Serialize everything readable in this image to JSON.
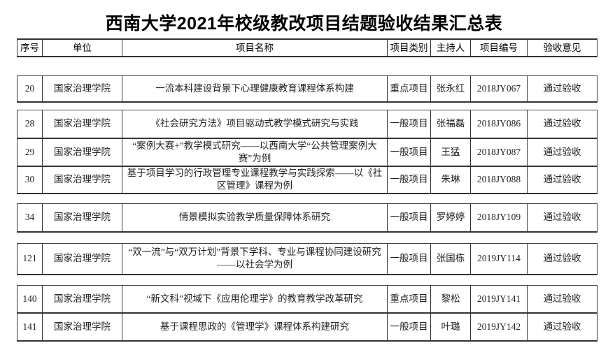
{
  "title": "西南大学2021年校级教改项目结题验收结果汇总表",
  "columns": [
    "序号",
    "单位",
    "项目名称",
    "项目类别",
    "主持人",
    "项目编号",
    "验收意见"
  ],
  "groups": [
    [
      {
        "no": "20",
        "unit": "国家治理学院",
        "name": "一流本科建设背景下心理健康教育课程体系构建",
        "category": "重点项目",
        "leader": "张永红",
        "code": "2018JY067",
        "result": "通过验收"
      }
    ],
    [
      {
        "no": "28",
        "unit": "国家治理学院",
        "name": "《社会研究方法》项目驱动式教学模式研究与实践",
        "category": "一般项目",
        "leader": "张福磊",
        "code": "2018JY086",
        "result": "通过验收"
      },
      {
        "no": "29",
        "unit": "国家治理学院",
        "name": "“案例大赛+”教学模式研究——以西南大学“公共管理案例大赛”为例",
        "category": "一般项目",
        "leader": "王猛",
        "code": "2018JY087",
        "result": "通过验收"
      },
      {
        "no": "30",
        "unit": "国家治理学院",
        "name": "基于项目学习的行政管理专业课程教学与实践探索——以《社区管理》课程为例",
        "category": "一般项目",
        "leader": "朱琳",
        "code": "2018JY088",
        "result": "通过验收"
      }
    ],
    [
      {
        "no": "34",
        "unit": "国家治理学院",
        "name": "情景模拟实验教学质量保障体系研究",
        "category": "一般项目",
        "leader": "罗婷婷",
        "code": "2018JY109",
        "result": "通过验收"
      }
    ],
    [
      {
        "no": "121",
        "unit": "国家治理学院",
        "name": "“双一流”与“双万计划”背景下学科、专业与课程协同建设研究——以社会学为例",
        "category": "一般项目",
        "leader": "张国栋",
        "code": "2019JY114",
        "result": "通过验收"
      }
    ],
    [
      {
        "no": "140",
        "unit": "国家治理学院",
        "name": "“新文科”视域下《应用伦理学》的教育教学改革研究",
        "category": "重点项目",
        "leader": "黎松",
        "code": "2019JY141",
        "result": "通过验收"
      },
      {
        "no": "141",
        "unit": "国家治理学院",
        "name": "基于课程思政的《管理学》课程体系构建研究",
        "category": "一般项目",
        "leader": "叶璐",
        "code": "2019JY142",
        "result": "通过验收"
      }
    ]
  ]
}
